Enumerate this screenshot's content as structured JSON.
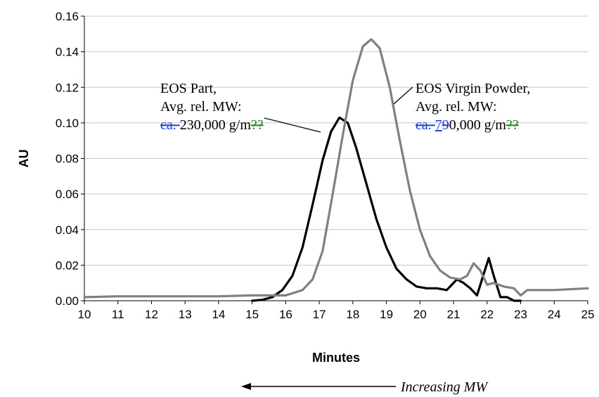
{
  "chart_data": {
    "type": "line",
    "xlabel": "Minutes",
    "ylabel": "AU",
    "xlim": [
      10,
      25
    ],
    "ylim": [
      0,
      0.16
    ],
    "x_ticks": [
      "10",
      "11",
      "12",
      "13",
      "14",
      "15",
      "16",
      "17",
      "18",
      "19",
      "20",
      "21",
      "22",
      "23",
      "24",
      "25"
    ],
    "y_ticks": [
      "0.00",
      "0.02",
      "0.04",
      "0.06",
      "0.08",
      "0.10",
      "0.12",
      "0.14",
      "0.16"
    ],
    "grid": true,
    "series": [
      {
        "color": "#000000",
        "points": [
          [
            15.0,
            0.0
          ],
          [
            15.3,
            0.0005
          ],
          [
            15.6,
            0.002
          ],
          [
            15.9,
            0.006
          ],
          [
            16.2,
            0.014
          ],
          [
            16.5,
            0.03
          ],
          [
            16.8,
            0.054
          ],
          [
            17.1,
            0.079
          ],
          [
            17.35,
            0.095
          ],
          [
            17.6,
            0.103
          ],
          [
            17.85,
            0.1
          ],
          [
            18.1,
            0.086
          ],
          [
            18.4,
            0.066
          ],
          [
            18.7,
            0.046
          ],
          [
            19.0,
            0.03
          ],
          [
            19.3,
            0.018
          ],
          [
            19.6,
            0.012
          ],
          [
            19.9,
            0.008
          ],
          [
            20.2,
            0.007
          ],
          [
            20.5,
            0.007
          ],
          [
            20.8,
            0.006
          ],
          [
            21.1,
            0.012
          ],
          [
            21.3,
            0.01
          ],
          [
            21.5,
            0.007
          ],
          [
            21.7,
            0.003
          ],
          [
            21.9,
            0.015
          ],
          [
            22.05,
            0.024
          ],
          [
            22.2,
            0.014
          ],
          [
            22.4,
            0.002
          ],
          [
            22.6,
            0.002
          ],
          [
            22.8,
            0.0
          ],
          [
            23.0,
            0.0
          ]
        ]
      },
      {
        "color": "#808080",
        "points": [
          [
            10.0,
            0.002
          ],
          [
            11.0,
            0.0025
          ],
          [
            12.0,
            0.0025
          ],
          [
            13.0,
            0.0025
          ],
          [
            14.0,
            0.0025
          ],
          [
            15.0,
            0.003
          ],
          [
            15.5,
            0.003
          ],
          [
            16.0,
            0.003
          ],
          [
            16.5,
            0.006
          ],
          [
            16.8,
            0.012
          ],
          [
            17.1,
            0.028
          ],
          [
            17.4,
            0.06
          ],
          [
            17.7,
            0.093
          ],
          [
            18.0,
            0.124
          ],
          [
            18.3,
            0.143
          ],
          [
            18.55,
            0.147
          ],
          [
            18.8,
            0.142
          ],
          [
            19.1,
            0.12
          ],
          [
            19.4,
            0.09
          ],
          [
            19.7,
            0.062
          ],
          [
            20.0,
            0.04
          ],
          [
            20.3,
            0.025
          ],
          [
            20.6,
            0.017
          ],
          [
            20.9,
            0.013
          ],
          [
            21.2,
            0.012
          ],
          [
            21.4,
            0.014
          ],
          [
            21.6,
            0.021
          ],
          [
            21.8,
            0.017
          ],
          [
            22.0,
            0.009
          ],
          [
            22.2,
            0.01
          ],
          [
            22.5,
            0.008
          ],
          [
            22.8,
            0.007
          ],
          [
            23.0,
            0.003
          ],
          [
            23.2,
            0.006
          ],
          [
            24.0,
            0.006
          ],
          [
            25.0,
            0.007
          ]
        ]
      }
    ],
    "annotations": [
      {
        "lines": [
          [
            {
              "text": "EOS Part,",
              "style": "normal"
            }
          ],
          [
            {
              "text": "Avg. rel. MW:",
              "style": "normal"
            }
          ],
          [
            {
              "text": "ca. ",
              "style": "blue-strike"
            },
            {
              "text": "230,000 g/m",
              "style": "normal"
            },
            {
              "text": "??",
              "style": "green-strike"
            }
          ]
        ]
      },
      {
        "lines": [
          [
            {
              "text": "EOS Virgin Powder,",
              "style": "normal"
            }
          ],
          [
            {
              "text": "Avg. rel. MW:",
              "style": "normal"
            }
          ],
          [
            {
              "text": "ca. ",
              "style": "blue-strike"
            },
            {
              "text": "7",
              "style": "blue-underline"
            },
            {
              "text": "9",
              "style": "blue-strike"
            },
            {
              "text": "0,000 g/m",
              "style": "normal"
            },
            {
              "text": "??",
              "style": "green-strike"
            }
          ]
        ]
      }
    ],
    "caption": "Increasing MW"
  }
}
